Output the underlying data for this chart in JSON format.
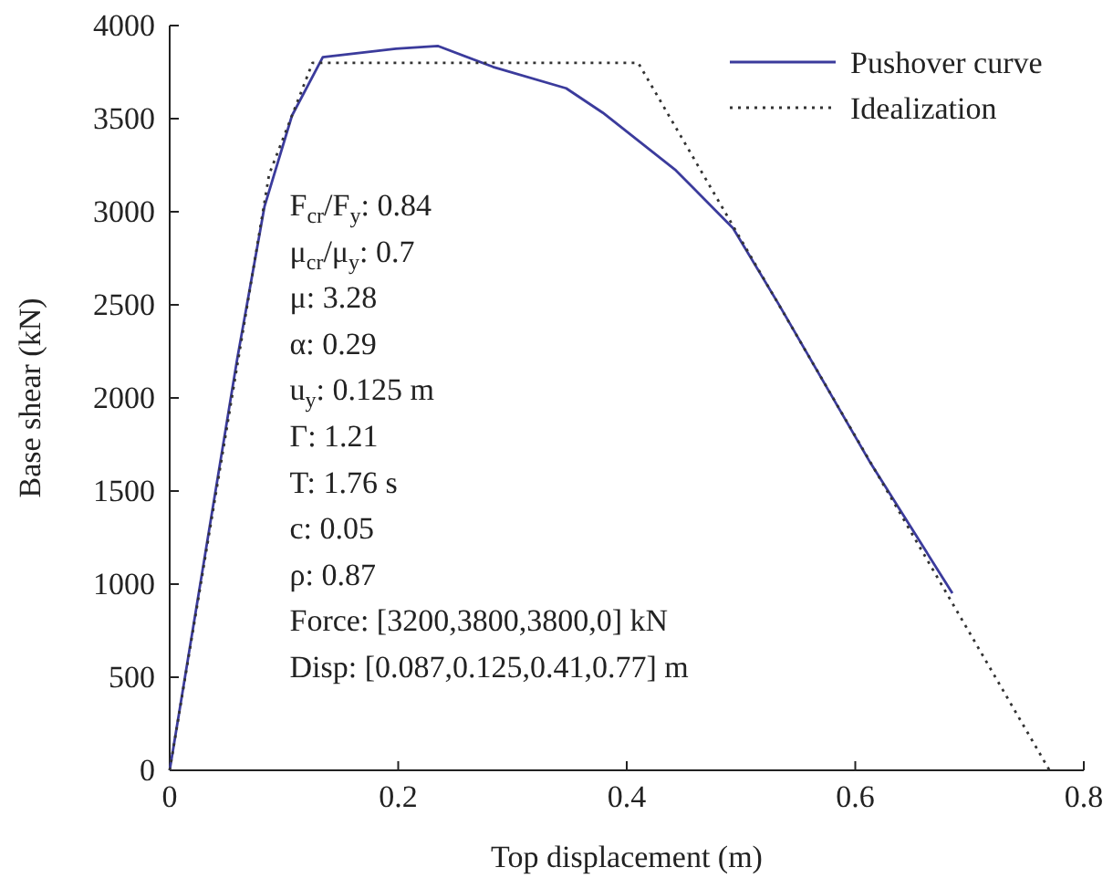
{
  "chart_data": {
    "type": "line",
    "xlabel": "Top displacement (m)",
    "ylabel": "Base shear (kN)",
    "xlim": [
      0,
      0.8
    ],
    "xticks": [
      0,
      0.2,
      0.4,
      0.6,
      0.8
    ],
    "ylim": [
      0,
      4000
    ],
    "yticks": [
      0,
      500,
      1000,
      1500,
      2000,
      2500,
      3000,
      3500,
      4000
    ],
    "grid": false,
    "legend": "top right",
    "marker": "none",
    "series": [
      {
        "name": "Pushover curve",
        "color": "#3b3b9c",
        "line_style": "solid",
        "x": [
          0,
          0.059,
          0.083,
          0.107,
          0.134,
          0.198,
          0.235,
          0.283,
          0.347,
          0.379,
          0.443,
          0.493,
          0.533,
          0.613,
          0.685
        ],
        "values": [
          0,
          2206,
          3029,
          3516,
          3830,
          3876,
          3890,
          3778,
          3663,
          3532,
          3222,
          2912,
          2503,
          1654,
          951
        ]
      },
      {
        "name": "Idealization",
        "color": "#333333",
        "line_style": "dotted",
        "x": [
          0,
          0.087,
          0.125,
          0.41,
          0.77
        ],
        "values": [
          0,
          3200,
          3800,
          3800,
          0
        ]
      }
    ],
    "annotations": [
      "F$_{cr}$/F$_{y}$: 0.84",
      "μ$_{cr}$/μ$_{y}$: 0.7",
      "μ: 3.28",
      "α: 0.29",
      "u$_{y}$: 0.125 m",
      "Γ: 1.21",
      "T: 1.76 s",
      "c: 0.05",
      "ρ: 0.87",
      "Force: [3200,3800,3800,0] kN",
      "Disp: [0.087,0.125,0.41,0.77] m"
    ]
  }
}
